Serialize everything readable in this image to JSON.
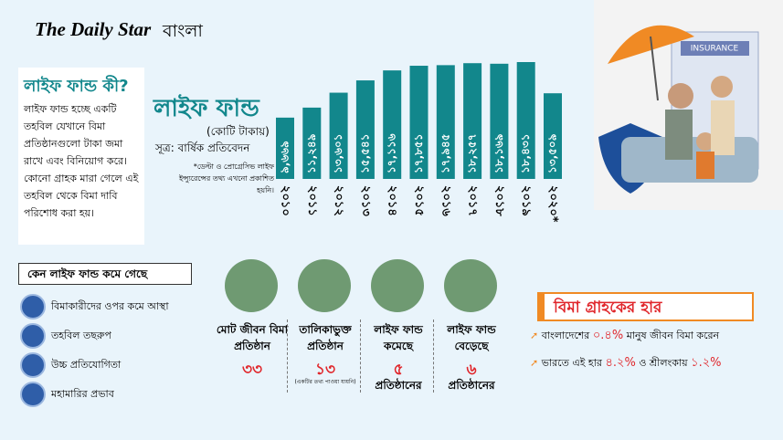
{
  "header": {
    "logo": "The Daily Star",
    "logo_suffix": "বাংলা"
  },
  "info": {
    "title": "লাইফ ফান্ড কী?",
    "text": "লাইফ ফান্ড হচ্ছে একটি তহবিল যেখানে বিমা প্রতিষ্ঠানগুলো টাকা জমা রাখে এবং বিনিয়োগ করে। কোনো গ্রাহক মারা গেলে এই তহবিল থেকে বিমা দাবি পরিশোধ করা হয়।"
  },
  "chart_data": {
    "type": "bar",
    "title": "লাইফ ফান্ড",
    "subtitle": "(কোটি টাকায়)",
    "source": "সূত্র: বার্ষিক প্রতিবেদন",
    "note": "*ডেল্টা ও প্রোগ্রেসিভ লাইফ ইন্স্যুরেন্সের তথ্য এখনো প্রকাশিত হয়নি।",
    "categories": [
      "২০১০",
      "২০১১",
      "২০১২",
      "২০১৩",
      "২০১৪",
      "২০১৫",
      "২০১৬",
      "২০১৭",
      "২০১৮",
      "২০১৯",
      "২০২০*"
    ],
    "values": [
      9669,
      11249,
      13601,
      15541,
      17116,
      17851,
      17945,
      18257,
      18169,
      18431,
      13509
    ],
    "value_labels": [
      "৯,৬৬৯",
      "১১,২৪৯",
      "১৩,৬০১",
      "১৫,৫৪১",
      "১৭,১১৬",
      "১৭,৮৫১",
      "১৭,৯৪৫",
      "১৮,২৫৭",
      "১৮,১৬৯",
      "১৮,৪৩১",
      "১৩,৫০৯"
    ],
    "color": "#12878c"
  },
  "illustration": {
    "label": "INSURANCE"
  },
  "reasons": {
    "title": "কেন লাইফ ফান্ড কমে গেছে",
    "items": [
      "বিমাকারীদের ওপর কমে আস্থা",
      "তহবিল তছরুপ",
      "উচ্চ প্রতিযোগিতা",
      "মহামারির প্রভাব"
    ]
  },
  "stats": [
    {
      "label": "মোট জীবন বিমা প্রতিষ্ঠান",
      "value": "৩৩"
    },
    {
      "label": "তালিকাভুক্ত প্রতিষ্ঠান",
      "value": "১৩",
      "note": "(একটির তথ্য পাওয়া যায়নি)"
    },
    {
      "label": "লাইফ ফান্ড কমেছে",
      "value": "৫",
      "suffix": "প্রতিষ্ঠানের"
    },
    {
      "label": "লাইফ ফান্ড বেড়েছে",
      "value": "৬",
      "suffix": "প্রতিষ্ঠানের"
    }
  ],
  "rate": {
    "title": "বিমা গ্রাহকের হার",
    "line1": {
      "a": "বাংলাদেশের",
      "b": "০.৪%",
      "c": "মানুষ জীবন বিমা করেন"
    },
    "line2": {
      "a": "ভারতে এই হার",
      "b": "৪.২%",
      "c": "ও শ্রীলংকায়",
      "d": "১.২%"
    }
  }
}
